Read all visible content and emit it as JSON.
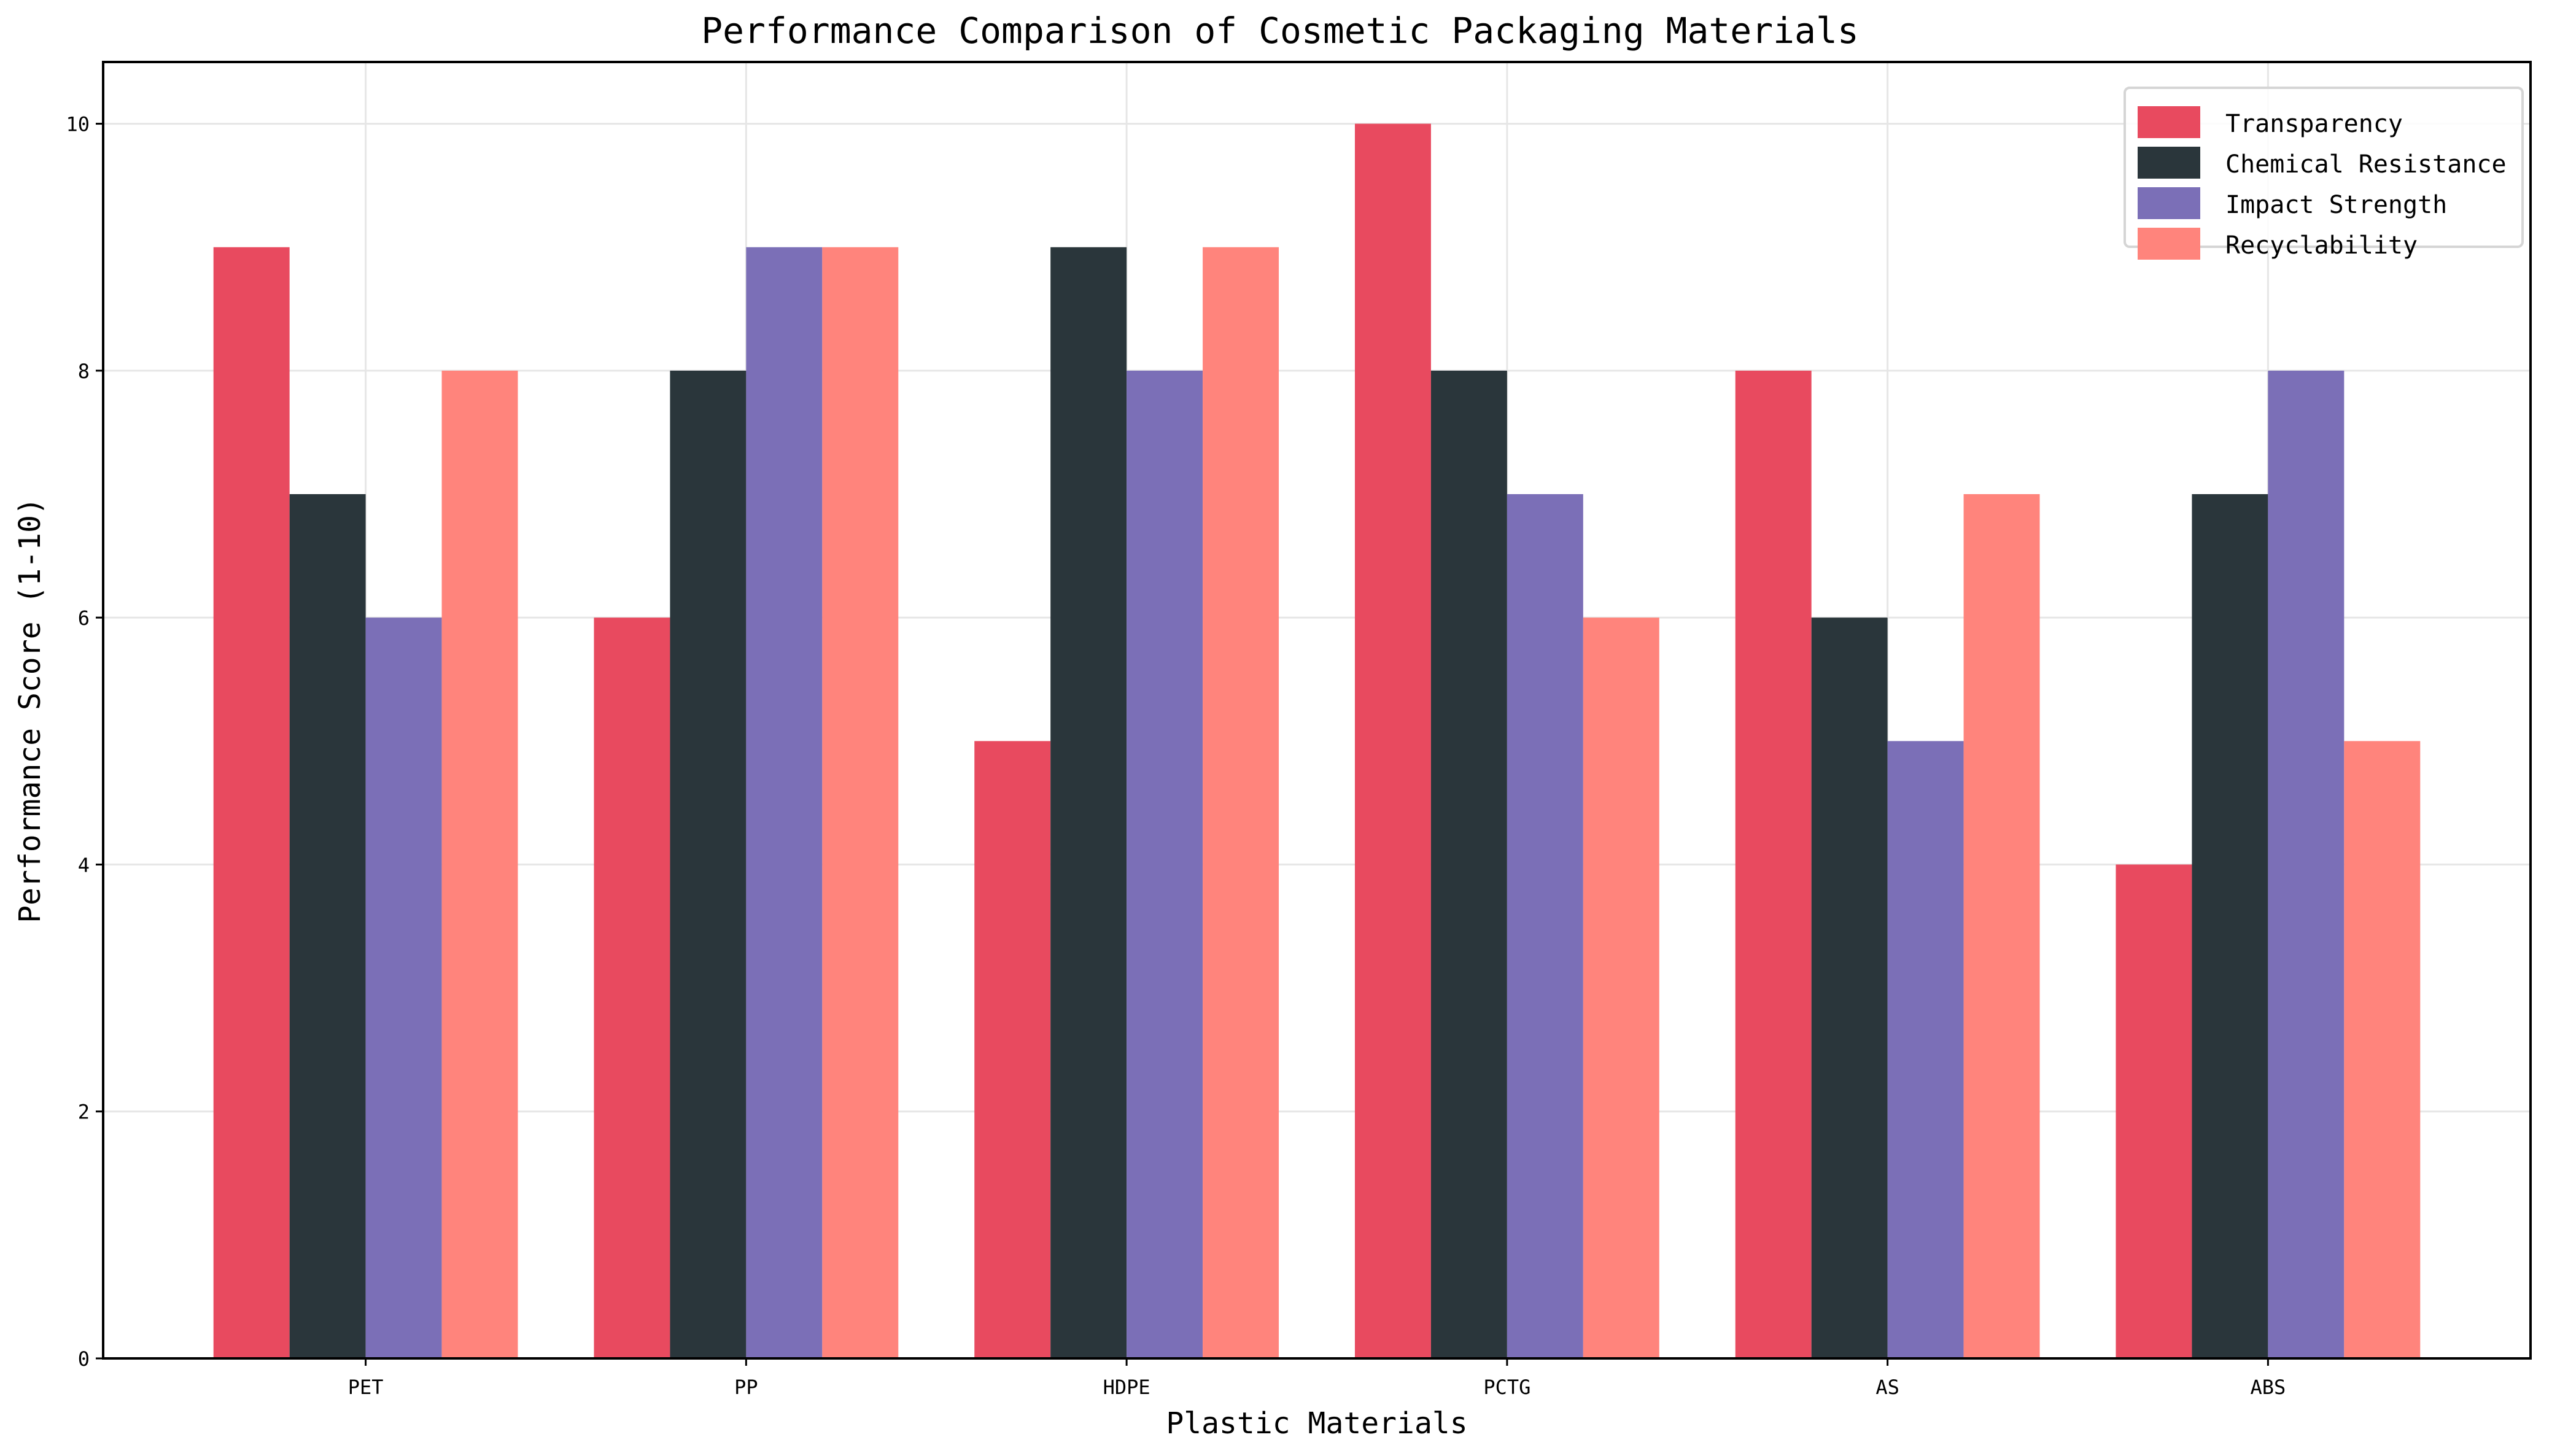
{
  "chart_data": {
    "type": "bar",
    "title": "Performance Comparison of Cosmetic Packaging Materials",
    "xlabel": "Plastic Materials",
    "ylabel": "Performance Score (1-10)",
    "categories": [
      "PET",
      "PP",
      "HDPE",
      "PCTG",
      "AS",
      "ABS"
    ],
    "series": [
      {
        "name": "Transparency",
        "color": "#E84A5F",
        "values": [
          9,
          6,
          5,
          10,
          8,
          4
        ]
      },
      {
        "name": "Chemical Resistance",
        "color": "#2A363B",
        "values": [
          7,
          8,
          9,
          8,
          6,
          7
        ]
      },
      {
        "name": "Impact Strength",
        "color": "#7B6FB7",
        "values": [
          6,
          9,
          8,
          7,
          5,
          8
        ]
      },
      {
        "name": "Recyclability",
        "color": "#FF847C",
        "values": [
          8,
          9,
          9,
          6,
          7,
          5
        ]
      }
    ],
    "ylim": [
      0,
      10.5
    ],
    "yticks": [
      0,
      2,
      4,
      6,
      8,
      10
    ],
    "grid": true,
    "legend": "top-right"
  }
}
